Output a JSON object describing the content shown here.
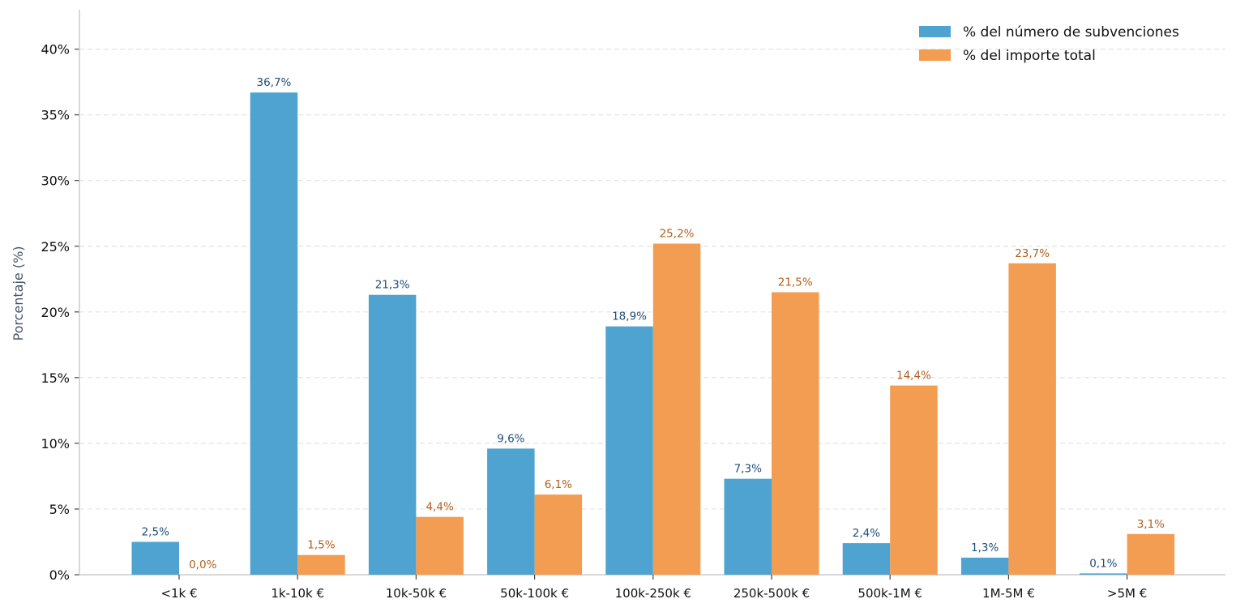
{
  "chart_data": {
    "type": "bar",
    "title": "",
    "xlabel": "",
    "ylabel": "Porcentaje (%)",
    "categories": [
      "<1k €",
      "1k-10k €",
      "10k-50k €",
      "50k-100k €",
      "100k-250k €",
      "250k-500k €",
      "500k-1M €",
      "1M-5M €",
      ">5M €"
    ],
    "series": [
      {
        "name": "% del número de subvenciones",
        "color": "#4fa3d1",
        "label_color": "#1f4e79",
        "values": [
          2.5,
          36.7,
          21.3,
          9.6,
          18.9,
          7.3,
          2.4,
          1.3,
          0.1
        ],
        "labels": [
          "2,5%",
          "36,7%",
          "21,3%",
          "9,6%",
          "18,9%",
          "7,3%",
          "2,4%",
          "1,3%",
          "0,1%"
        ]
      },
      {
        "name": "% del importe total",
        "color": "#f29d52",
        "label_color": "#b0601f",
        "values": [
          0.0,
          1.5,
          4.4,
          6.1,
          25.2,
          21.5,
          14.4,
          23.7,
          3.1
        ],
        "labels": [
          "0,0%",
          "1,5%",
          "4,4%",
          "6,1%",
          "25,2%",
          "21,5%",
          "14,4%",
          "23,7%",
          "3,1%"
        ]
      }
    ],
    "yticks": [
      0,
      5,
      10,
      15,
      20,
      25,
      30,
      35,
      40
    ],
    "ytick_labels": [
      "0%",
      "5%",
      "10%",
      "15%",
      "20%",
      "25%",
      "30%",
      "35%",
      "40%"
    ],
    "ylim": [
      0,
      43
    ],
    "grid": true,
    "legend_position": "top-right"
  }
}
